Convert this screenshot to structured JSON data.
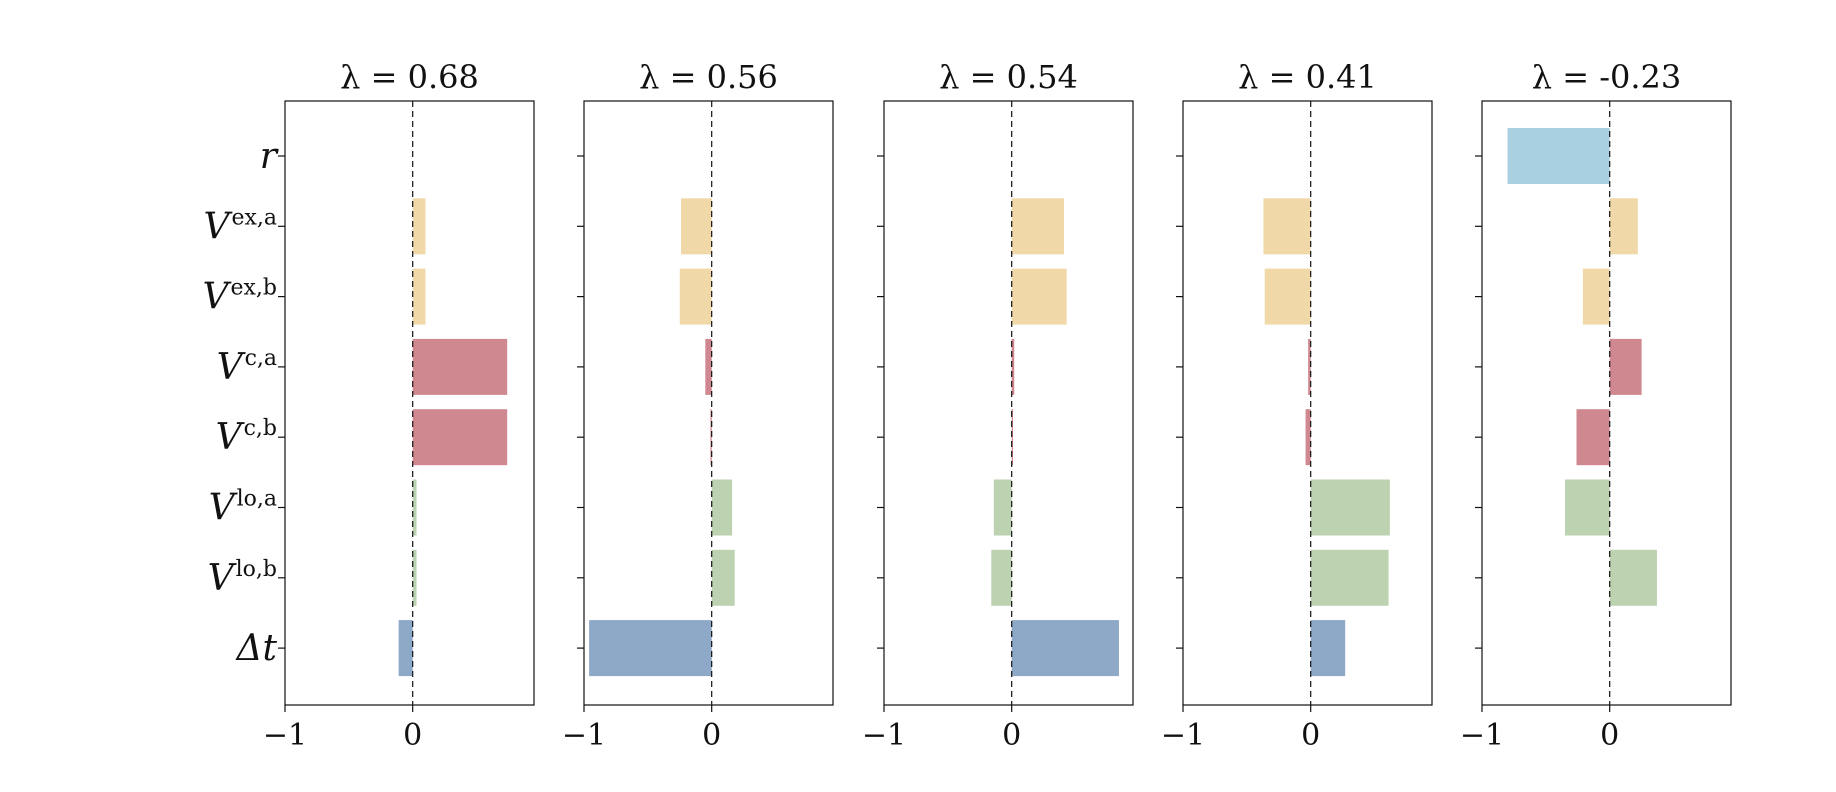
{
  "chart_data": [
    {
      "type": "bar",
      "title": "λ = 0.68",
      "categories": [
        "r",
        "V^ex,a",
        "V^ex,b",
        "V^c,a",
        "V^c,b",
        "V^lo,a",
        "V^lo,b",
        "Δt"
      ],
      "values": [
        0.0,
        0.1,
        0.1,
        0.74,
        0.74,
        0.03,
        0.03,
        -0.11
      ],
      "xlim": [
        -1,
        0.95
      ],
      "xticks": [
        "−1",
        "0"
      ]
    },
    {
      "type": "bar",
      "title": "λ = 0.56",
      "categories": [
        "r",
        "V^ex,a",
        "V^ex,b",
        "V^c,a",
        "V^c,b",
        "V^lo,a",
        "V^lo,b",
        "Δt"
      ],
      "values": [
        0.0,
        -0.24,
        -0.25,
        -0.05,
        -0.01,
        0.16,
        0.18,
        -0.96
      ],
      "xlim": [
        -1,
        0.95
      ],
      "xticks": [
        "−1",
        "0"
      ]
    },
    {
      "type": "bar",
      "title": "λ = 0.54",
      "categories": [
        "r",
        "V^ex,a",
        "V^ex,b",
        "V^c,a",
        "V^c,b",
        "V^lo,a",
        "V^lo,b",
        "Δt"
      ],
      "values": [
        0.0,
        0.41,
        0.43,
        0.02,
        0.01,
        -0.14,
        -0.16,
        0.84
      ],
      "xlim": [
        -1,
        0.95
      ],
      "xticks": [
        "−1",
        "0"
      ]
    },
    {
      "type": "bar",
      "title": "λ = 0.41",
      "categories": [
        "r",
        "V^ex,a",
        "V^ex,b",
        "V^c,a",
        "V^c,b",
        "V^lo,a",
        "V^lo,b",
        "Δt"
      ],
      "values": [
        0.0,
        -0.37,
        -0.36,
        -0.02,
        -0.04,
        0.62,
        0.61,
        0.27
      ],
      "xlim": [
        -1,
        0.95
      ],
      "xticks": [
        "−1",
        "0"
      ]
    },
    {
      "type": "bar",
      "title": "λ = -0.23",
      "categories": [
        "r",
        "V^ex,a",
        "V^ex,b",
        "V^c,a",
        "V^c,b",
        "V^lo,a",
        "V^lo,b",
        "Δt"
      ],
      "values": [
        -0.8,
        0.22,
        -0.21,
        0.25,
        -0.26,
        -0.35,
        0.37,
        0.0
      ],
      "xlim": [
        -1,
        0.95
      ],
      "xticks": [
        "−1",
        "0"
      ]
    }
  ],
  "row_labels": [
    {
      "base": "r",
      "sup": ""
    },
    {
      "base": "V",
      "sup": "ex,a"
    },
    {
      "base": "V",
      "sup": "ex,b"
    },
    {
      "base": "V",
      "sup": "c,a"
    },
    {
      "base": "V",
      "sup": "c,b"
    },
    {
      "base": "V",
      "sup": "lo,a"
    },
    {
      "base": "V",
      "sup": "lo,b"
    },
    {
      "base": "Δt",
      "sup": ""
    }
  ],
  "colors": [
    "#a8d0e0",
    "#f0d8a8",
    "#f0d8a8",
    "#d08890",
    "#d08890",
    "#bcd2b0",
    "#bcd2b0",
    "#8ea8c8"
  ],
  "grid": false,
  "zero_line": "dashed"
}
